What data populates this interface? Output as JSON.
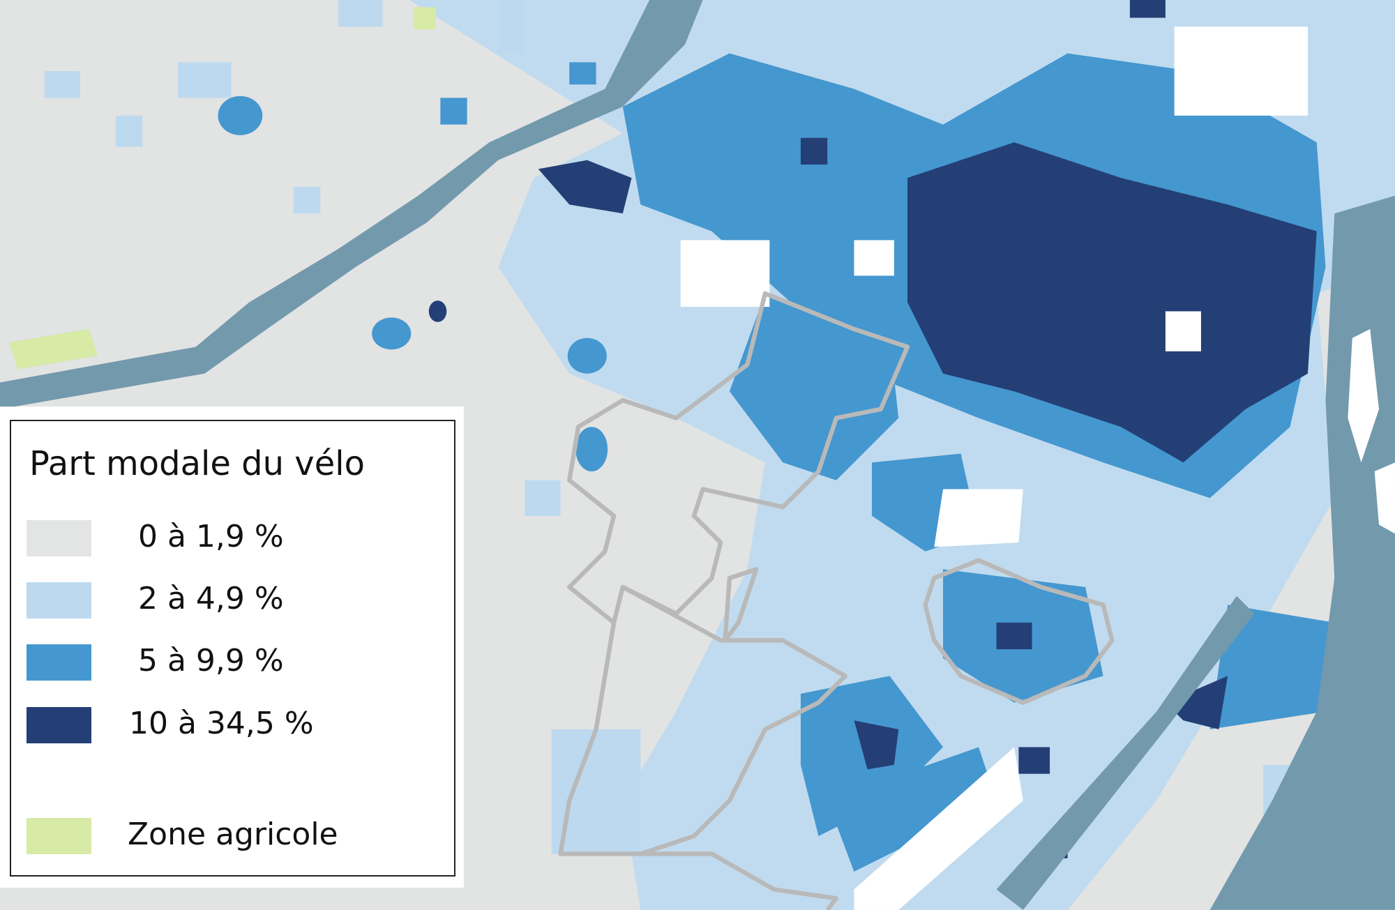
{
  "legend": {
    "title": "Part modale du vélo",
    "items": [
      {
        "label": "0 à 1,9 %",
        "color": "#e3e4e4"
      },
      {
        "label": "2 à 4,9 %",
        "color": "#bcd9ef"
      },
      {
        "label": "5 à 9,9 %",
        "color": "#4597cf"
      },
      {
        "label": "10 à 34,5 %",
        "color": "#243f76"
      },
      {
        "label": "Zone agricole",
        "color": "#d7eaa6"
      }
    ]
  }
}
